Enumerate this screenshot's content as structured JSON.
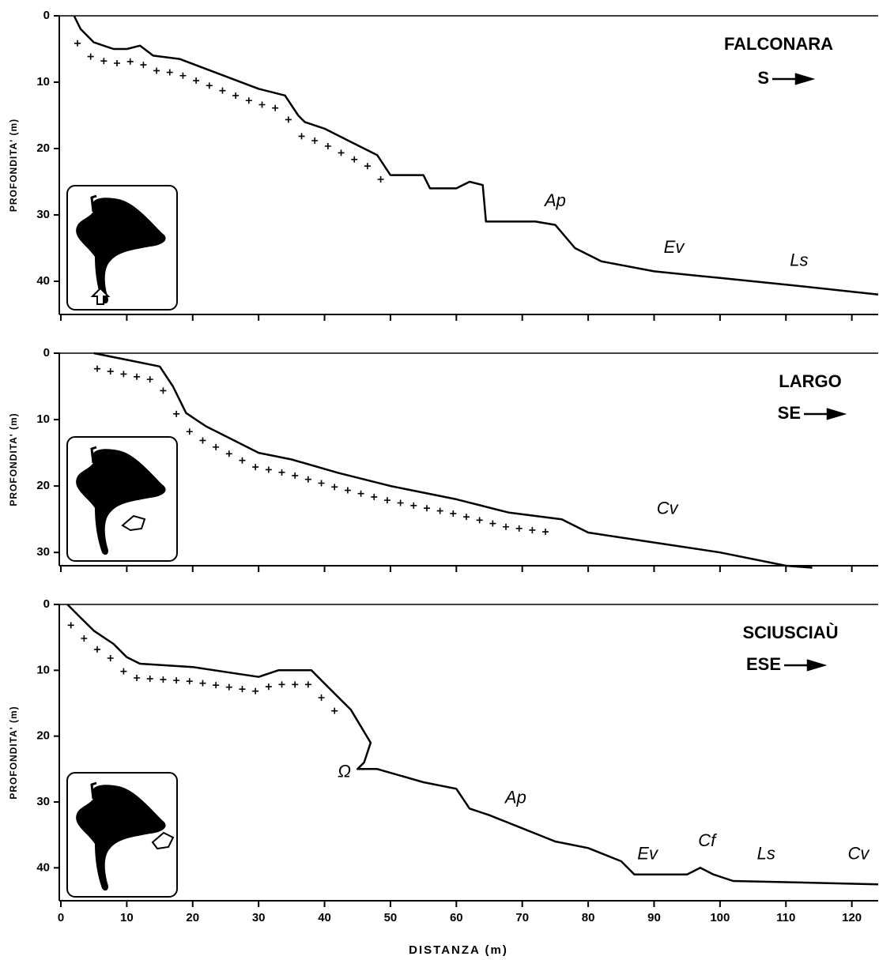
{
  "chart_data": [
    {
      "type": "line",
      "title": "FALCONARA",
      "direction": "S",
      "ylabel": "PROFONDITA' (m)",
      "annotations": [
        "Ap",
        "Ev",
        "Ls"
      ],
      "x": [
        2,
        3,
        5,
        8,
        10,
        12,
        14,
        18,
        22,
        26,
        30,
        34,
        36,
        37,
        40,
        44,
        48,
        50,
        55,
        56,
        60,
        62,
        64,
        64.5,
        72,
        75,
        78,
        82,
        90,
        100,
        110,
        124
      ],
      "values": [
        0,
        2,
        4,
        5,
        5,
        4.5,
        6,
        6.5,
        8,
        9.5,
        11,
        12,
        15,
        16,
        17,
        19,
        21,
        24,
        24,
        26,
        26,
        25,
        25.5,
        31,
        31,
        31.5,
        35,
        37,
        38.5,
        39.5,
        40.5,
        42
      ],
      "color": "#000000",
      "y_inverted": true,
      "xlim": [
        0,
        124
      ],
      "ylim": [
        0,
        45
      ],
      "xticks": [
        0,
        10,
        20,
        30,
        40,
        50,
        60,
        70,
        80,
        90,
        100,
        110,
        120
      ],
      "yticks": [
        0,
        10,
        20,
        30,
        40
      ]
    },
    {
      "type": "line",
      "title": "LARGO",
      "direction": "SE",
      "ylabel": "PROFONDITA' (m)",
      "annotations": [
        "Cv"
      ],
      "x": [
        5,
        10,
        15,
        17,
        19,
        22,
        26,
        30,
        35,
        42,
        50,
        60,
        68,
        72,
        76,
        78,
        80,
        90,
        100,
        110,
        114
      ],
      "values": [
        0,
        1,
        2,
        5,
        9,
        11,
        13,
        15,
        16,
        18,
        20,
        22,
        24,
        24.5,
        25,
        26,
        27,
        28.5,
        30,
        32,
        32.3
      ],
      "color": "#000000",
      "y_inverted": true,
      "xlim": [
        0,
        124
      ],
      "ylim": [
        0,
        32
      ],
      "xticks": [
        0,
        10,
        20,
        30,
        40,
        50,
        60,
        70,
        80,
        90,
        100,
        110,
        120
      ],
      "yticks": [
        0,
        10,
        20,
        30
      ]
    },
    {
      "type": "line",
      "title": "SCIUSCIAÙ",
      "direction": "ESE",
      "ylabel": "PROFONDITA' (m)",
      "xlabel": "DISTANZA (m)",
      "annotations": [
        "Ap",
        "Ev",
        "Cf",
        "Ls",
        "Cv",
        "Ω"
      ],
      "x": [
        1,
        3,
        5,
        8,
        10,
        12,
        20,
        30,
        33,
        38,
        40,
        44,
        47,
        46,
        45,
        48,
        55,
        60,
        62,
        65,
        70,
        75,
        80,
        85,
        87,
        95,
        97,
        99,
        102,
        124
      ],
      "values": [
        0,
        2,
        4,
        6,
        8,
        9,
        9.5,
        11,
        10,
        10,
        12,
        16,
        21,
        24,
        25,
        25,
        27,
        28,
        31,
        32,
        34,
        36,
        37,
        39,
        41,
        41,
        40,
        41,
        42,
        42.5
      ],
      "color": "#000000",
      "y_inverted": true,
      "xlim": [
        0,
        124
      ],
      "ylim": [
        0,
        45
      ],
      "xticks": [
        0,
        10,
        20,
        30,
        40,
        50,
        60,
        70,
        80,
        90,
        100,
        110,
        120
      ],
      "yticks": [
        0,
        10,
        20,
        30,
        40
      ]
    }
  ]
}
